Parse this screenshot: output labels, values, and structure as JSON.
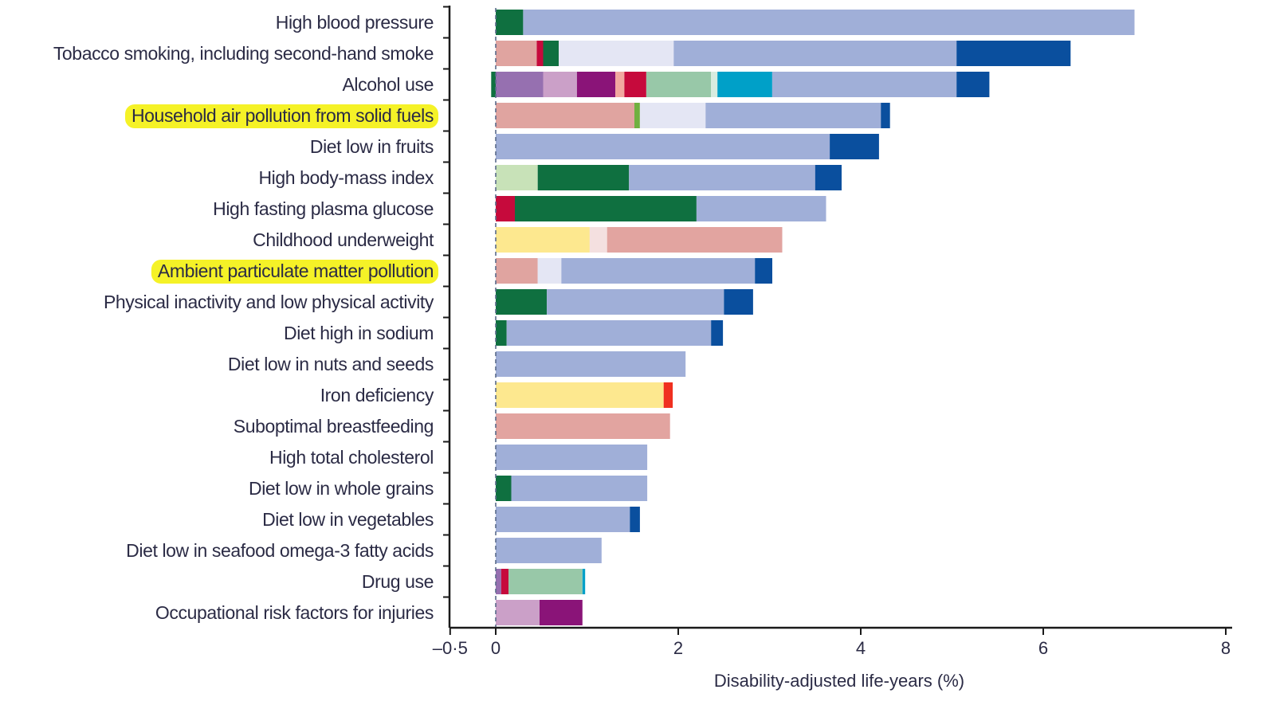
{
  "chart_data": {
    "type": "bar",
    "orientation": "horizontal",
    "stacked": true,
    "xlabel": "Disability-adjusted life-years (%)",
    "xlim": [
      -0.5,
      8
    ],
    "xticks": [
      {
        "value": -0.5,
        "label": "–0·5"
      },
      {
        "value": 0,
        "label": "0"
      },
      {
        "value": 2,
        "label": "2"
      },
      {
        "value": 4,
        "label": "4"
      },
      {
        "value": 6,
        "label": "6"
      },
      {
        "value": 8,
        "label": "8"
      }
    ],
    "grid": false,
    "legend": "none",
    "zero_line": "dashed",
    "highlighted_categories": [
      "Household air pollution from solid fuels",
      "Ambient particulate matter pollution"
    ],
    "colors": {
      "cardio_circ": "#a0afd8",
      "neoplasms": "#0a4f9e",
      "diabetes_urogen": "#0f7040",
      "diabetes_light": "#c8e2b8",
      "resp_infections": "#e0a4a0",
      "chronic_resp": "#e4e6f4",
      "nutritional_def": "#fde88f",
      "neonatal": "#f4e0e0",
      "maternal": "#e2a4a0",
      "cirrhosis": "#c60a3c",
      "other_ncd": "#a80a33",
      "mental_purple": "#9670b0",
      "self_harm": "#cba0c8",
      "transport_inj": "#8a1478",
      "unintentional_inj": "#f2a8a0",
      "neuro": "#98c8a8",
      "cyan": "#00a0c8",
      "red": "#f03020",
      "green_light": "#70b040",
      "dark_green": "#0f7040"
    },
    "categories": [
      "High blood pressure",
      "Tobacco smoking, including second-hand smoke",
      "Alcohol use",
      "Household air pollution from solid fuels",
      "Diet low in fruits",
      "High body-mass index",
      "High fasting plasma glucose",
      "Childhood underweight",
      "Ambient particulate matter pollution",
      "Physical inactivity and low physical activity",
      "Diet high in sodium",
      "Diet low in nuts and seeds",
      "Iron deficiency",
      "Suboptimal breastfeeding",
      "High total cholesterol",
      "Diet low in whole grains",
      "Diet low in vegetables",
      "Diet low in seafood omega-3 fatty acids",
      "Drug use",
      "Occupational risk factors for injuries"
    ],
    "bars": [
      {
        "category": "High blood pressure",
        "segments": [
          {
            "from": 0.0,
            "to": 0.3,
            "color": "#0f7040"
          },
          {
            "from": 0.3,
            "to": 7.0,
            "color": "#a0afd8"
          }
        ]
      },
      {
        "category": "Tobacco smoking, including second-hand smoke",
        "segments": [
          {
            "from": 0.0,
            "to": 0.45,
            "color": "#e0a4a0"
          },
          {
            "from": 0.45,
            "to": 0.52,
            "color": "#c60a3c"
          },
          {
            "from": 0.52,
            "to": 0.69,
            "color": "#0f7040"
          },
          {
            "from": 0.69,
            "to": 1.95,
            "color": "#e4e6f4"
          },
          {
            "from": 1.95,
            "to": 5.05,
            "color": "#a0afd8"
          },
          {
            "from": 5.05,
            "to": 6.3,
            "color": "#0a4f9e"
          }
        ]
      },
      {
        "category": "Alcohol use",
        "segments": [
          {
            "from": -0.05,
            "to": 0.0,
            "color": "#0f7040"
          },
          {
            "from": 0.0,
            "to": 0.52,
            "color": "#9670b0"
          },
          {
            "from": 0.52,
            "to": 0.89,
            "color": "#cba0c8"
          },
          {
            "from": 0.89,
            "to": 1.31,
            "color": "#8a1478"
          },
          {
            "from": 1.31,
            "to": 1.41,
            "color": "#f2a8a0"
          },
          {
            "from": 1.41,
            "to": 1.65,
            "color": "#c60a3c"
          },
          {
            "from": 1.65,
            "to": 2.36,
            "color": "#98c8a8"
          },
          {
            "from": 2.36,
            "to": 2.43,
            "color": "#d8ece0"
          },
          {
            "from": 2.43,
            "to": 3.03,
            "color": "#00a0c8"
          },
          {
            "from": 3.03,
            "to": 5.05,
            "color": "#a0afd8"
          },
          {
            "from": 5.05,
            "to": 5.41,
            "color": "#0a4f9e"
          }
        ]
      },
      {
        "category": "Household air pollution from solid fuels",
        "segments": [
          {
            "from": 0.0,
            "to": 1.52,
            "color": "#e0a4a0"
          },
          {
            "from": 1.52,
            "to": 1.58,
            "color": "#70b040"
          },
          {
            "from": 1.58,
            "to": 2.3,
            "color": "#e4e6f4"
          },
          {
            "from": 2.3,
            "to": 4.22,
            "color": "#a0afd8"
          },
          {
            "from": 4.22,
            "to": 4.32,
            "color": "#0a4f9e"
          }
        ]
      },
      {
        "category": "Diet low in fruits",
        "segments": [
          {
            "from": 0.0,
            "to": 3.66,
            "color": "#a0afd8"
          },
          {
            "from": 3.66,
            "to": 4.2,
            "color": "#0a4f9e"
          }
        ]
      },
      {
        "category": "High body-mass index",
        "segments": [
          {
            "from": 0.0,
            "to": 0.46,
            "color": "#c8e2b8"
          },
          {
            "from": 0.46,
            "to": 1.46,
            "color": "#0f7040"
          },
          {
            "from": 1.46,
            "to": 3.5,
            "color": "#a0afd8"
          },
          {
            "from": 3.5,
            "to": 3.79,
            "color": "#0a4f9e"
          }
        ]
      },
      {
        "category": "High fasting plasma glucose",
        "segments": [
          {
            "from": 0.0,
            "to": 0.21,
            "color": "#c60a3c"
          },
          {
            "from": 0.21,
            "to": 2.2,
            "color": "#0f7040"
          },
          {
            "from": 2.2,
            "to": 3.62,
            "color": "#a0afd8"
          }
        ]
      },
      {
        "category": "Childhood underweight",
        "segments": [
          {
            "from": 0.0,
            "to": 1.03,
            "color": "#fde88f"
          },
          {
            "from": 1.03,
            "to": 1.22,
            "color": "#f4e0e0"
          },
          {
            "from": 1.22,
            "to": 3.14,
            "color": "#e2a4a0"
          }
        ]
      },
      {
        "category": "Ambient particulate matter pollution",
        "segments": [
          {
            "from": 0.0,
            "to": 0.46,
            "color": "#e0a4a0"
          },
          {
            "from": 0.46,
            "to": 0.72,
            "color": "#e4e6f4"
          },
          {
            "from": 0.72,
            "to": 2.84,
            "color": "#a0afd8"
          },
          {
            "from": 2.84,
            "to": 3.03,
            "color": "#0a4f9e"
          }
        ]
      },
      {
        "category": "Physical inactivity and low physical activity",
        "segments": [
          {
            "from": 0.0,
            "to": 0.56,
            "color": "#0f7040"
          },
          {
            "from": 0.56,
            "to": 2.5,
            "color": "#a0afd8"
          },
          {
            "from": 2.5,
            "to": 2.82,
            "color": "#0a4f9e"
          }
        ]
      },
      {
        "category": "Diet high in sodium",
        "segments": [
          {
            "from": 0.0,
            "to": 0.12,
            "color": "#0f7040"
          },
          {
            "from": 0.12,
            "to": 2.36,
            "color": "#a0afd8"
          },
          {
            "from": 2.36,
            "to": 2.49,
            "color": "#0a4f9e"
          }
        ]
      },
      {
        "category": "Diet low in nuts and seeds",
        "segments": [
          {
            "from": 0.0,
            "to": 2.08,
            "color": "#a0afd8"
          }
        ]
      },
      {
        "category": "Iron deficiency",
        "segments": [
          {
            "from": 0.0,
            "to": 1.84,
            "color": "#fde88f"
          },
          {
            "from": 1.84,
            "to": 1.94,
            "color": "#f03020"
          }
        ]
      },
      {
        "category": "Suboptimal breastfeeding",
        "segments": [
          {
            "from": 0.0,
            "to": 1.91,
            "color": "#e2a4a0"
          }
        ]
      },
      {
        "category": "High total cholesterol",
        "segments": [
          {
            "from": 0.0,
            "to": 1.66,
            "color": "#a0afd8"
          }
        ]
      },
      {
        "category": "Diet low in whole grains",
        "segments": [
          {
            "from": 0.0,
            "to": 0.17,
            "color": "#0f7040"
          },
          {
            "from": 0.17,
            "to": 1.66,
            "color": "#a0afd8"
          }
        ]
      },
      {
        "category": "Diet low in vegetables",
        "segments": [
          {
            "from": 0.0,
            "to": 1.47,
            "color": "#a0afd8"
          },
          {
            "from": 1.47,
            "to": 1.58,
            "color": "#0a4f9e"
          }
        ]
      },
      {
        "category": "Diet low in seafood omega-3 fatty acids",
        "segments": [
          {
            "from": 0.0,
            "to": 1.16,
            "color": "#a0afd8"
          }
        ]
      },
      {
        "category": "Drug use",
        "segments": [
          {
            "from": 0.0,
            "to": 0.06,
            "color": "#9670b0"
          },
          {
            "from": 0.06,
            "to": 0.14,
            "color": "#c60a3c"
          },
          {
            "from": 0.14,
            "to": 0.95,
            "color": "#98c8a8"
          },
          {
            "from": 0.95,
            "to": 0.98,
            "color": "#00a0c8"
          }
        ]
      },
      {
        "category": "Occupational risk factors for injuries",
        "segments": [
          {
            "from": 0.0,
            "to": 0.48,
            "color": "#cba0c8"
          },
          {
            "from": 0.48,
            "to": 0.95,
            "color": "#8a1478"
          }
        ]
      }
    ]
  }
}
